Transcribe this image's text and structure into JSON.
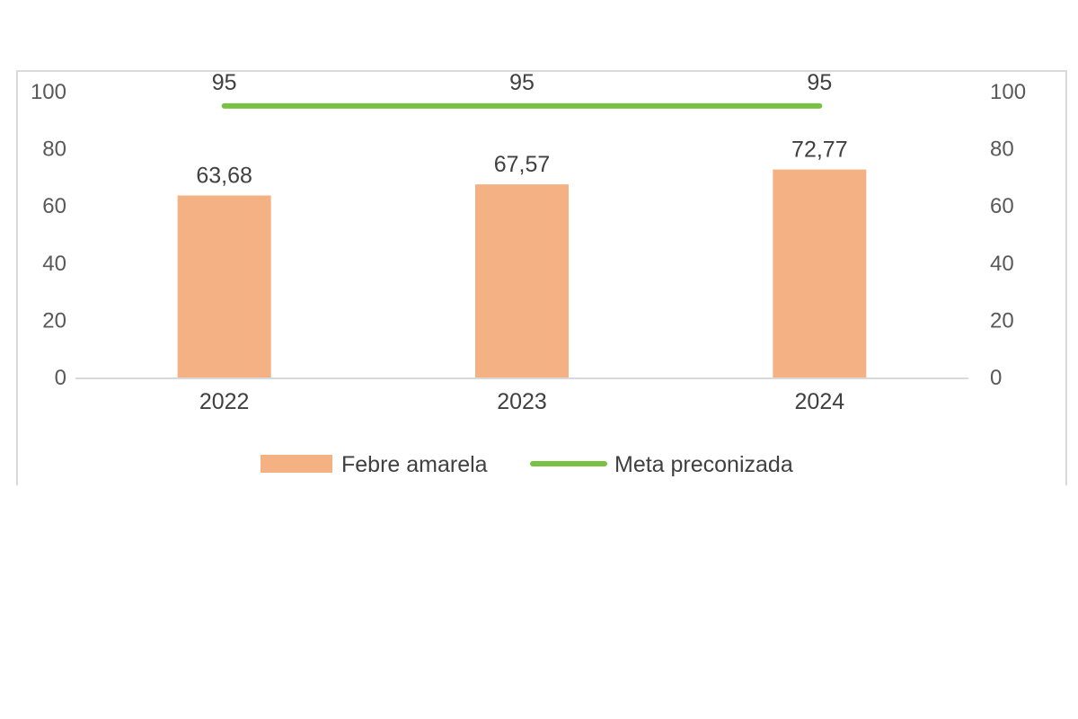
{
  "chart_data": {
    "type": "bar",
    "categories": [
      "2022",
      "2023",
      "2024"
    ],
    "series": [
      {
        "name": "Febre amarela",
        "kind": "bar",
        "values": [
          63.68,
          67.57,
          72.77
        ],
        "labels": [
          "63,68",
          "67,57",
          "72,77"
        ],
        "color": "#f4b183"
      },
      {
        "name": "Meta preconizada",
        "kind": "line",
        "values": [
          95,
          95,
          95
        ],
        "labels": [
          "95",
          "95",
          "95"
        ],
        "color": "#7ac143"
      }
    ],
    "yticks": [
      "0",
      "20",
      "40",
      "60",
      "80",
      "100"
    ],
    "ylim": [
      0,
      100
    ],
    "y2ticks": [
      "0",
      "20",
      "40",
      "60",
      "80",
      "100"
    ],
    "y2lim": [
      0,
      100
    ],
    "grid": false,
    "legend": "bottom",
    "title": "",
    "xlabel": "",
    "ylabel": ""
  }
}
